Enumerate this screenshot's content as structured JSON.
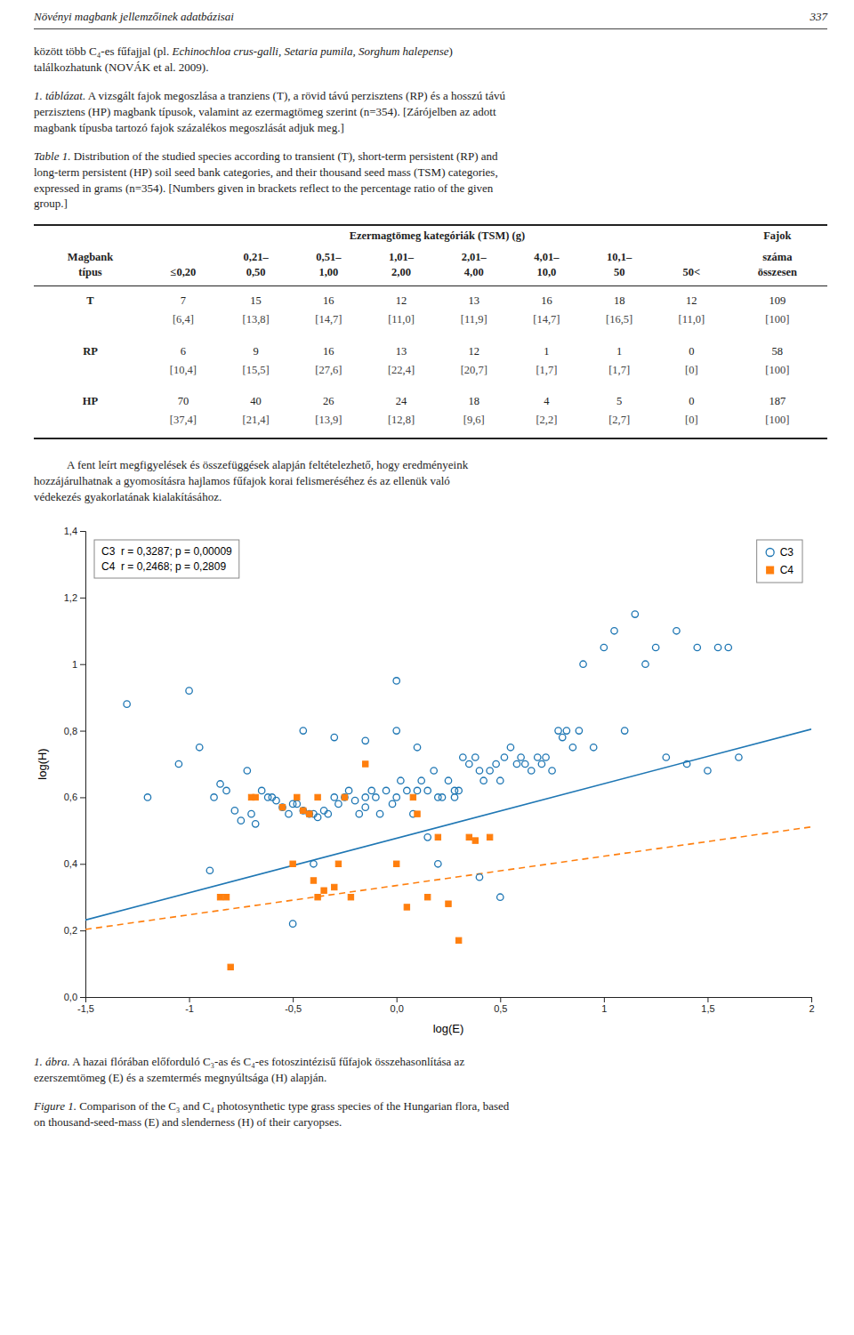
{
  "page": {
    "header_left": "Növényi magbank jellemzőinek adatbázisai",
    "header_right": "337",
    "intro": [
      [
        {
          "text": "között több C₄-es fűfajjal (pl. "
        },
        {
          "text": "Echinochloa crus-galli, Setaria pumila, Sorghum halepense",
          "italic": true
        },
        {
          "text": ")"
        }
      ],
      [
        {
          "text": "találkozhatunk (NOVÁK et al. 2009)."
        }
      ]
    ],
    "table_caption_hu": {
      "label": "1. táblázat.",
      "lines": [
        " A vizsgált fajok megoszlása a tranziens (T), a rövid távú perzisztens (RP) és a hosszú távú",
        "perzisztens (HP) magbank típusok, valamint az ezermagtömeg szerint (n=354). [Zárójelben az adott",
        "magbank típusba tartozó fajok százalékos megoszlását adjuk meg.]"
      ]
    },
    "table_caption_en": {
      "label": "Table 1.",
      "lines": [
        " Distribution of the studied species according to transient (T), short-term persistent (RP) and",
        "long-term persistent (HP) soil seed bank categories, and their thousand seed mass (TSM) categories,",
        "expressed in grams (n=354). [Numbers given in brackets reflect to the percentage ratio of the given",
        "group.]"
      ]
    },
    "body": [
      "A fent leírt megfigyelések és összefüggések alapján feltételezhető, hogy eredményeink",
      "hozzájárulhatnak a gyomosításra hajlamos fűfajok korai felismeréséhez és az ellenük való",
      "védekezés gyakorlatának kialakításához."
    ],
    "figure_caption_hu": {
      "label": "1. ábra.",
      "lines": [
        " A hazai flórában előforduló C₃-as és C₄-es fotoszintézisű fűfajok összehasonlítása az",
        "ezerszemtömeg (E) és a szemtermés megnyúltsága (H) alapján."
      ]
    },
    "figure_caption_en": {
      "label": "Figure 1.",
      "lines": [
        " Comparison of the C₃ and C₄ photosynthetic type grass species of the Hungarian flora, based",
        "on thousand-seed-mass (E) and slenderness (H) of their caryopses."
      ]
    }
  },
  "table": {
    "header": "Ezermagtömeg kategóriák (TSM) (g)",
    "header_right": "Fajok",
    "columns": [
      [
        "Magbank",
        "típus"
      ],
      [
        "≤0,20"
      ],
      [
        "0,21–",
        "0,50"
      ],
      [
        "0,51–",
        "1,00"
      ],
      [
        "1,01–",
        "2,00"
      ],
      [
        "2,01–",
        "4,00"
      ],
      [
        "4,01–",
        "10,0"
      ],
      [
        "10,1–",
        "50"
      ],
      [
        "50<"
      ],
      [
        "száma",
        "összesen"
      ]
    ],
    "rows": [
      {
        "name": "T",
        "values": [
          7,
          15,
          16,
          12,
          13,
          16,
          18,
          12,
          109
        ],
        "percent": [
          {
            "value": 6.4,
            "label": "[6,4]"
          },
          {
            "value": 13.8,
            "label": "[13,8]"
          },
          {
            "value": 14.7,
            "label": "[14,7]"
          },
          {
            "value": 11.0,
            "label": "[11,0]"
          },
          {
            "value": 11.9,
            "label": "[11,9]"
          },
          {
            "value": 14.7,
            "label": "[14,7]"
          },
          {
            "value": 16.5,
            "label": "[16,5]"
          },
          {
            "value": 11.0,
            "label": "[11,0]"
          },
          {
            "value": 100,
            "label": "[100]"
          }
        ]
      },
      {
        "name": "RP",
        "values": [
          6,
          9,
          16,
          13,
          12,
          1,
          1,
          0,
          58
        ],
        "percent": [
          {
            "value": 10.4,
            "label": "[10,4]"
          },
          {
            "value": 15.5,
            "label": "[15,5]"
          },
          {
            "value": 27.6,
            "label": "[27,6]"
          },
          {
            "value": 22.4,
            "label": "[22,4]"
          },
          {
            "value": 20.7,
            "label": "[20,7]"
          },
          {
            "value": 1.7,
            "label": "[1,7]"
          },
          {
            "value": 1.7,
            "label": "[1,7]"
          },
          {
            "value": 0,
            "label": "[0]"
          },
          {
            "value": 100,
            "label": "[100]"
          }
        ]
      },
      {
        "name": "HP",
        "values": [
          70,
          40,
          26,
          24,
          18,
          4,
          5,
          0,
          187
        ],
        "percent": [
          {
            "value": 37.4,
            "label": "[37,4]"
          },
          {
            "value": 21.4,
            "label": "[21,4]"
          },
          {
            "value": 13.9,
            "label": "[13,9]"
          },
          {
            "value": 12.8,
            "label": "[12,8]"
          },
          {
            "value": 9.6,
            "label": "[9,6]"
          },
          {
            "value": 2.2,
            "label": "[2,2]"
          },
          {
            "value": 2.7,
            "label": "[2,7]"
          },
          {
            "value": 0,
            "label": "[0]"
          },
          {
            "value": 100,
            "label": "[100]"
          }
        ]
      }
    ]
  },
  "chart_data": {
    "type": "scatter",
    "xlabel": "log(E)",
    "ylabel": "log(H)",
    "xlim": [
      -1.5,
      2.0
    ],
    "ylim": [
      0.0,
      1.4
    ],
    "xticks": [
      {
        "value": -1.5,
        "label": "-1,5"
      },
      -1,
      {
        "value": -0.5,
        "label": "-0,5"
      },
      {
        "value": 0.0,
        "label": "0,0"
      },
      {
        "value": 0.5,
        "label": "0,5"
      },
      1,
      {
        "value": 1.5,
        "label": "1,5"
      },
      2
    ],
    "yticks": [
      {
        "value": 0.0,
        "label": "0,0"
      },
      {
        "value": 0.2,
        "label": "0,2"
      },
      {
        "value": 0.4,
        "label": "0,4"
      },
      {
        "value": 0.6,
        "label": "0,6"
      },
      {
        "value": 0.8,
        "label": "0,8"
      },
      1,
      {
        "value": 1.2,
        "label": "1,2"
      },
      {
        "value": 1.4,
        "label": "1,4"
      }
    ],
    "grid": false,
    "legend": "top-right",
    "annotations": [
      "C3  r = 0,3287; p = 0,00009",
      "C4  r = 0,2468; p = 0,2809"
    ],
    "series": [
      {
        "name": "C3",
        "type": "scatter",
        "marker": "circle",
        "x": [
          -1.3,
          -1.05,
          -1.0,
          -0.95,
          -0.88,
          -0.85,
          -0.82,
          -0.78,
          -0.75,
          -0.72,
          -0.7,
          -0.68,
          -0.65,
          -0.62,
          -0.6,
          -0.58,
          -0.55,
          -0.52,
          -0.5,
          -0.48,
          -0.45,
          -0.42,
          -0.4,
          -0.38,
          -0.35,
          -0.33,
          -0.3,
          -0.28,
          -0.25,
          -0.23,
          -0.2,
          -0.18,
          -0.15,
          -0.12,
          -0.1,
          -0.08,
          -0.05,
          -0.02,
          0.0,
          0.02,
          0.05,
          0.08,
          0.1,
          0.12,
          0.15,
          0.18,
          0.2,
          0.22,
          0.25,
          0.28,
          0.3,
          0.32,
          0.35,
          0.38,
          0.4,
          0.42,
          0.45,
          0.48,
          0.5,
          0.52,
          0.55,
          0.58,
          0.6,
          0.62,
          0.65,
          0.68,
          0.7,
          0.72,
          0.75,
          0.78,
          0.8,
          0.82,
          0.85,
          0.88,
          0.9,
          0.95,
          1.0,
          1.05,
          1.1,
          1.15,
          1.2,
          1.25,
          1.3,
          1.35,
          1.4,
          1.45,
          1.5,
          1.55,
          1.6,
          1.65,
          -0.5,
          -0.45,
          -0.4,
          -0.3,
          -0.15,
          -0.15,
          0.0,
          0.1,
          0.2,
          0.28,
          0.4,
          0.5,
          -1.2,
          -0.9,
          0.0,
          0.15
        ],
        "values": [
          0.88,
          0.7,
          0.92,
          0.75,
          0.6,
          0.64,
          0.62,
          0.56,
          0.53,
          0.68,
          0.55,
          0.52,
          0.62,
          0.6,
          0.6,
          0.59,
          0.57,
          0.55,
          0.58,
          0.58,
          0.56,
          0.55,
          0.55,
          0.54,
          0.56,
          0.55,
          0.6,
          0.58,
          0.6,
          0.62,
          0.59,
          0.55,
          0.6,
          0.62,
          0.6,
          0.55,
          0.62,
          0.58,
          0.6,
          0.65,
          0.62,
          0.55,
          0.62,
          0.65,
          0.62,
          0.68,
          0.6,
          0.6,
          0.65,
          0.62,
          0.62,
          0.72,
          0.7,
          0.72,
          0.68,
          0.65,
          0.68,
          0.7,
          0.65,
          0.72,
          0.75,
          0.7,
          0.72,
          0.7,
          0.68,
          0.72,
          0.7,
          0.72,
          0.68,
          0.8,
          0.78,
          0.8,
          0.75,
          0.8,
          1.0,
          0.75,
          1.05,
          1.1,
          0.8,
          1.15,
          1.0,
          1.05,
          0.72,
          1.1,
          0.7,
          1.05,
          0.68,
          1.05,
          1.05,
          0.72,
          0.22,
          0.8,
          0.4,
          0.78,
          0.57,
          0.77,
          0.95,
          0.75,
          0.4,
          0.6,
          0.36,
          0.3,
          0.6,
          0.38,
          0.8,
          0.48
        ]
      },
      {
        "name": "C4",
        "type": "scatter",
        "marker": "square",
        "x": [
          -0.85,
          -0.82,
          -0.7,
          -0.68,
          -0.55,
          -0.5,
          -0.48,
          -0.45,
          -0.42,
          -0.4,
          -0.38,
          -0.35,
          -0.3,
          -0.28,
          -0.25,
          -0.22,
          -0.15,
          0.0,
          0.05,
          0.08,
          0.1,
          0.15,
          0.2,
          0.25,
          0.3,
          0.35,
          0.38,
          0.45,
          -0.8,
          -0.38
        ],
        "values": [
          0.3,
          0.3,
          0.6,
          0.6,
          0.57,
          0.4,
          0.6,
          0.56,
          0.55,
          0.35,
          0.6,
          0.32,
          0.33,
          0.4,
          0.6,
          0.3,
          0.7,
          0.4,
          0.27,
          0.6,
          0.55,
          0.3,
          0.48,
          0.28,
          0.17,
          0.48,
          0.47,
          0.48,
          0.09,
          0.3
        ]
      },
      {
        "type": "line",
        "line_style": "solid",
        "x": [
          -1.5,
          2.0
        ],
        "values": [
          0.2313,
          0.8046
        ]
      },
      {
        "type": "line",
        "line_style": "dashed",
        "x": [
          -1.5,
          2.0
        ],
        "values": [
          0.203,
          0.511
        ]
      }
    ]
  }
}
